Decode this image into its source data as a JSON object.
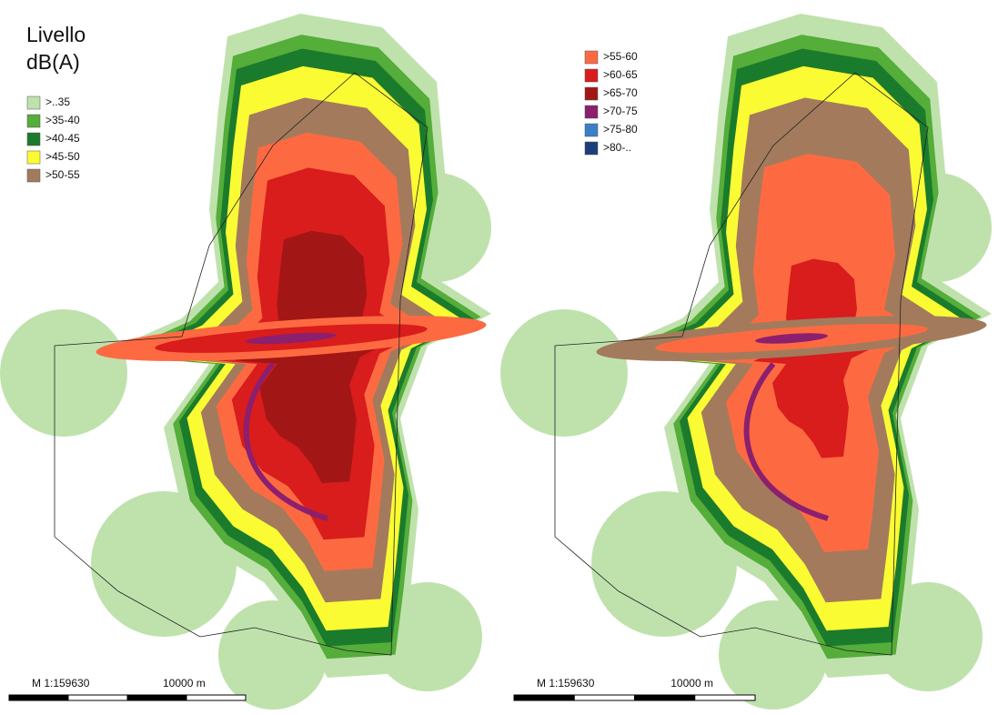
{
  "left_map": {
    "legend": {
      "title_lines": [
        "Livello",
        "dB(A)"
      ],
      "items": [
        {
          "label": ">..35",
          "color": "#bfe2ad"
        },
        {
          "label": ">35-40",
          "color": "#55ad3a"
        },
        {
          "label": ">40-45",
          "color": "#1b7b2c"
        },
        {
          "label": ">45-50",
          "color": "#fbfb34"
        },
        {
          "label": ">50-55",
          "color": "#a37b5c"
        }
      ]
    },
    "scale": {
      "ratio": "M 1:159630",
      "distance": "10000 m"
    }
  },
  "right_map": {
    "legend": {
      "items": [
        {
          "label": ">55-60",
          "color": "#fd6a42"
        },
        {
          "label": ">60-65",
          "color": "#d91c1c"
        },
        {
          "label": ">65-70",
          "color": "#a31616"
        },
        {
          "label": ">70-75",
          "color": "#8c1f6e"
        },
        {
          "label": ">75-80",
          "color": "#3b80c5"
        },
        {
          "label": ">80-..",
          "color": "#1d3c7b"
        }
      ]
    },
    "scale": {
      "ratio": "M 1:159630",
      "distance": "10000 m"
    }
  }
}
